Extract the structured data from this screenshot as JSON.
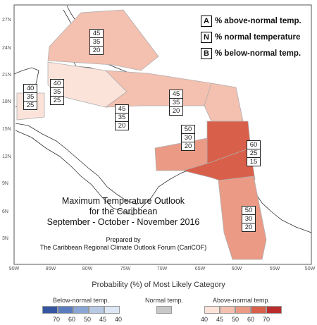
{
  "map": {
    "title_lines": [
      "Maximum Temperature Outlook",
      "for the Caribbean",
      "September - October - November 2016"
    ],
    "prepared_lines": [
      "Prepared by",
      "The Caribbean Regional Climate Outlook Forum (CariCOF)"
    ],
    "lon_labels": [
      "90W",
      "85W",
      "80W",
      "75W",
      "70W",
      "65W",
      "60W",
      "55W",
      "50W"
    ],
    "lat_labels": [
      "27N",
      "24N",
      "21N",
      "18N",
      "15N",
      "12N",
      "9N",
      "6N",
      "3N"
    ],
    "key": [
      {
        "letter": "A",
        "text": "% above-normal temp."
      },
      {
        "letter": "N",
        "text": "% normal temperature"
      },
      {
        "letter": "B",
        "text": "% below-normal temp."
      }
    ],
    "probability_boxes": [
      {
        "id": "bahamas",
        "values": [
          "45",
          "35",
          "20"
        ]
      },
      {
        "id": "belize",
        "values": [
          "40",
          "35",
          "25"
        ]
      },
      {
        "id": "cayman",
        "values": [
          "40",
          "35",
          "25"
        ]
      },
      {
        "id": "greater-antilles",
        "values": [
          "45",
          "35",
          "20"
        ]
      },
      {
        "id": "leeward",
        "values": [
          "45",
          "35",
          "20"
        ]
      },
      {
        "id": "abc-islands",
        "values": [
          "50",
          "30",
          "20"
        ]
      },
      {
        "id": "windward",
        "values": [
          "60",
          "25",
          "15"
        ]
      },
      {
        "id": "guianas",
        "values": [
          "50",
          "30",
          "20"
        ]
      }
    ],
    "colors": {
      "above_40": "#fbe3da",
      "above_45": "#f4c0b0",
      "above_50": "#ea9a85",
      "above_60": "#d8604a",
      "above_70": "#bb2d2d",
      "normal": "#c8c8c8",
      "below_40": "#dde6f4",
      "below_45": "#b8c9e6",
      "below_50": "#8aa6d4",
      "below_60": "#5a7cbf",
      "below_70": "#3556a0"
    }
  },
  "legend": {
    "title": "Probability (%) of Most Likely Category",
    "below_label": "Below-normal temp.",
    "normal_label": "Normal temp.",
    "above_label": "Above-normal temp.",
    "below_ticks": [
      "70",
      "60",
      "50",
      "45",
      "40"
    ],
    "above_ticks": [
      "40",
      "45",
      "50",
      "60",
      "70"
    ]
  }
}
